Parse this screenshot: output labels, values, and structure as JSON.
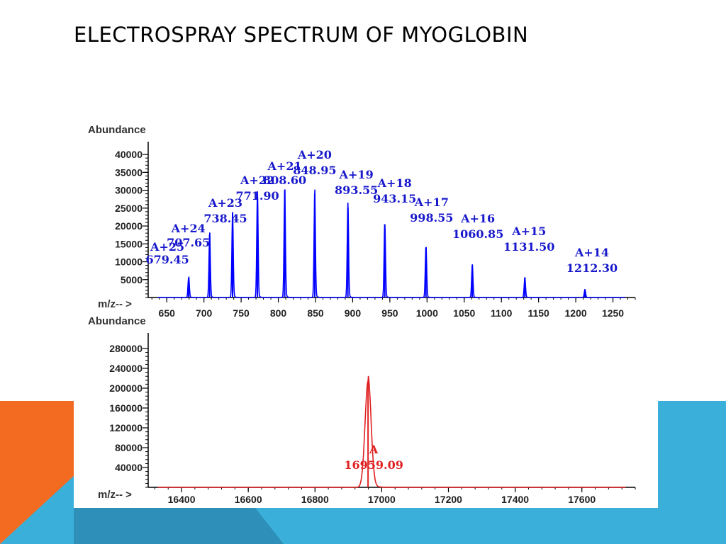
{
  "slide": {
    "title": "ELECTROSPRAY SPECTRUM OF MYOGLOBIN",
    "colors": {
      "orange": "#F26B21",
      "light_blue": "#3AAFDA",
      "dark_blue": "#2E8FB8"
    }
  },
  "chart_data": [
    {
      "type": "line",
      "description": "ESI multiply-charged ion series",
      "color": "#0000FF",
      "ylabel": "Abundance",
      "xlabel": "m/z-- >",
      "xlim": [
        625,
        1280
      ],
      "ylim": [
        0,
        42000
      ],
      "xticks": [
        650,
        700,
        750,
        800,
        850,
        900,
        950,
        1000,
        1050,
        1100,
        1150,
        1200,
        1250
      ],
      "yticks": [
        5000,
        10000,
        15000,
        20000,
        25000,
        30000,
        35000,
        40000
      ],
      "peaks": [
        {
          "label": "A+25",
          "mz": "679.45",
          "x": 679.45,
          "y": 5600
        },
        {
          "label": "A+24",
          "mz": "707.65",
          "x": 707.65,
          "y": 17500
        },
        {
          "label": "A+23",
          "mz": "738.45",
          "x": 738.45,
          "y": 23500
        },
        {
          "label": "A+22",
          "mz": "771.90",
          "x": 771.9,
          "y": 28000
        },
        {
          "label": "A+21",
          "mz": "808.60",
          "x": 808.6,
          "y": 30000
        },
        {
          "label": "A+20",
          "mz": "848.95",
          "x": 848.95,
          "y": 29000
        },
        {
          "label": "A+19",
          "mz": "893.55",
          "x": 893.55,
          "y": 25000
        },
        {
          "label": "A+18",
          "mz": "943.15",
          "x": 943.15,
          "y": 20500
        },
        {
          "label": "A+17",
          "mz": "998.55",
          "x": 998.55,
          "y": 14000
        },
        {
          "label": "A+16",
          "mz": "1060.85",
          "x": 1060.85,
          "y": 9000
        },
        {
          "label": "A+15",
          "mz": "1131.50",
          "x": 1131.5,
          "y": 5500
        },
        {
          "label": "A+14",
          "mz": "1212.30",
          "x": 1212.3,
          "y": 2200
        }
      ]
    },
    {
      "type": "line",
      "description": "Deconvoluted mass spectrum",
      "color": "#E02020",
      "ylabel": "Abundance",
      "xlabel": "m/z-- >",
      "xlim": [
        16300,
        17760
      ],
      "ylim": [
        0,
        300000
      ],
      "xticks": [
        16400,
        16600,
        16800,
        17000,
        17200,
        17400,
        17600
      ],
      "yticks": [
        40000,
        80000,
        120000,
        160000,
        200000,
        240000,
        280000
      ],
      "peaks": [
        {
          "label": "A",
          "mz": "16959.09",
          "x": 16959.09,
          "y": 214000
        }
      ]
    }
  ]
}
